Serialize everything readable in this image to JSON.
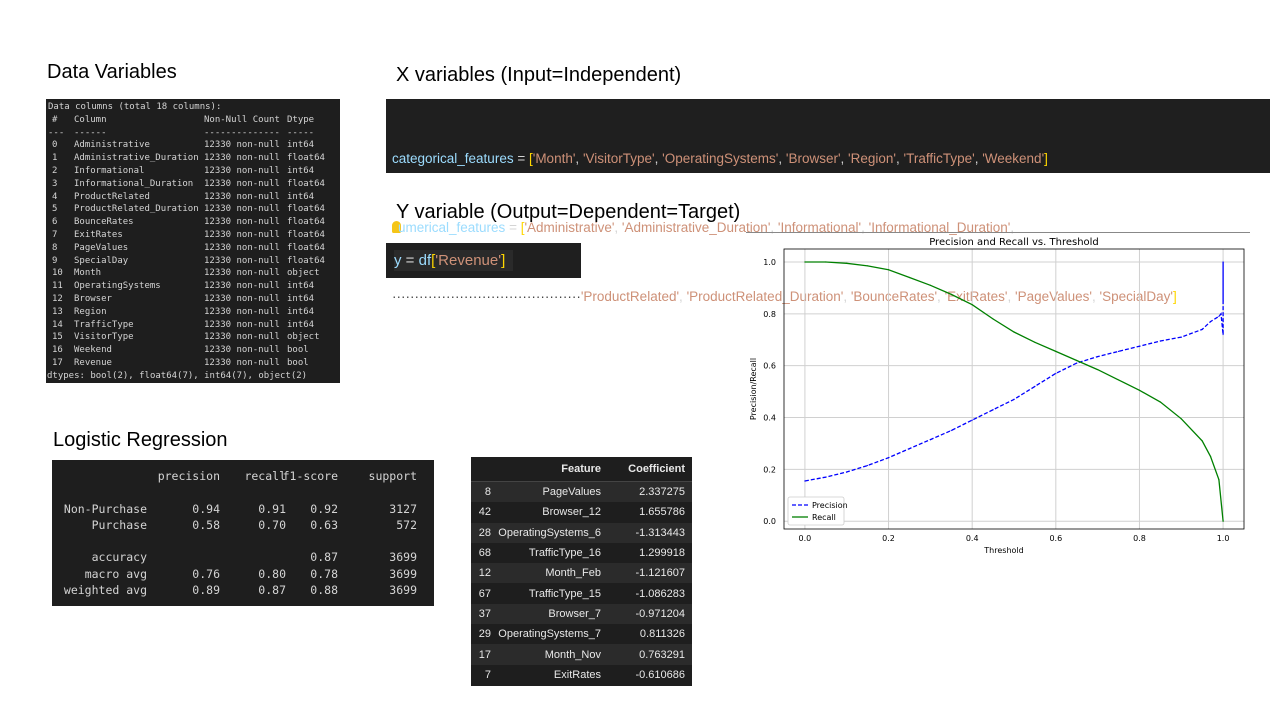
{
  "headings": {
    "data_variables": "Data Variables",
    "x_variables": "X variables (Input=Independent)",
    "y_variable": "Y variable (Output=Dependent=Target)",
    "logistic_regression": "Logistic Regression"
  },
  "data_info": {
    "header_line": "Data columns (total 18 columns):",
    "col_headers": [
      "#",
      "Column",
      "Non-Null Count",
      "Dtype"
    ],
    "separators": [
      "---",
      "------",
      "--------------",
      "-----"
    ],
    "rows": [
      [
        "0",
        "Administrative",
        "12330 non-null",
        "int64"
      ],
      [
        "1",
        "Administrative_Duration",
        "12330 non-null",
        "float64"
      ],
      [
        "2",
        "Informational",
        "12330 non-null",
        "int64"
      ],
      [
        "3",
        "Informational_Duration",
        "12330 non-null",
        "float64"
      ],
      [
        "4",
        "ProductRelated",
        "12330 non-null",
        "int64"
      ],
      [
        "5",
        "ProductRelated_Duration",
        "12330 non-null",
        "float64"
      ],
      [
        "6",
        "BounceRates",
        "12330 non-null",
        "float64"
      ],
      [
        "7",
        "ExitRates",
        "12330 non-null",
        "float64"
      ],
      [
        "8",
        "PageValues",
        "12330 non-null",
        "float64"
      ],
      [
        "9",
        "SpecialDay",
        "12330 non-null",
        "float64"
      ],
      [
        "10",
        "Month",
        "12330 non-null",
        "object"
      ],
      [
        "11",
        "OperatingSystems",
        "12330 non-null",
        "int64"
      ],
      [
        "12",
        "Browser",
        "12330 non-null",
        "int64"
      ],
      [
        "13",
        "Region",
        "12330 non-null",
        "int64"
      ],
      [
        "14",
        "TrafficType",
        "12330 non-null",
        "int64"
      ],
      [
        "15",
        "VisitorType",
        "12330 non-null",
        "object"
      ],
      [
        "16",
        "Weekend",
        "12330 non-null",
        "bool"
      ],
      [
        "17",
        "Revenue",
        "12330 non-null",
        "bool"
      ]
    ],
    "footer_line": "dtypes: bool(2), float64(7), int64(7), object(2)"
  },
  "x_code": {
    "cat_name": "categorical_features",
    "cat_values": [
      "Month",
      "VisitorType",
      "OperatingSystems",
      "Browser",
      "Region",
      "TrafficType",
      "Weekend"
    ],
    "num_name_visible": "umerical_features",
    "num_values_line1": [
      "Administrative",
      "Administrative_Duration",
      "Informational",
      "Informational_Duration"
    ],
    "num_values_line2": [
      "ProductRelated",
      "ProductRelated_Duration",
      "BounceRates",
      "ExitRates",
      "PageValues",
      "SpecialDay"
    ]
  },
  "y_code": {
    "var": "y",
    "df": "df",
    "key": "Revenue"
  },
  "classification_report": {
    "columns": [
      "precision",
      "recall",
      "f1-score",
      "support"
    ],
    "rows": [
      {
        "label": "Non-Purchase",
        "precision": "0.94",
        "recall": "0.91",
        "f1": "0.92",
        "support": "3127"
      },
      {
        "label": "Purchase",
        "precision": "0.58",
        "recall": "0.70",
        "f1": "0.63",
        "support": "572"
      },
      {
        "label": "accuracy",
        "precision": "",
        "recall": "",
        "f1": "0.87",
        "support": "3699"
      },
      {
        "label": "macro avg",
        "precision": "0.76",
        "recall": "0.80",
        "f1": "0.78",
        "support": "3699"
      },
      {
        "label": "weighted avg",
        "precision": "0.89",
        "recall": "0.87",
        "f1": "0.88",
        "support": "3699"
      }
    ]
  },
  "feature_table": {
    "headers": [
      "",
      "Feature",
      "Coefficient"
    ],
    "rows": [
      [
        "8",
        "PageValues",
        "2.337275"
      ],
      [
        "42",
        "Browser_12",
        "1.655786"
      ],
      [
        "28",
        "OperatingSystems_6",
        "-1.313443"
      ],
      [
        "68",
        "TrafficType_16",
        "1.299918"
      ],
      [
        "12",
        "Month_Feb",
        "-1.121607"
      ],
      [
        "67",
        "TrafficType_15",
        "-1.086283"
      ],
      [
        "37",
        "Browser_7",
        "-0.971204"
      ],
      [
        "29",
        "OperatingSystems_7",
        "0.811326"
      ],
      [
        "17",
        "Month_Nov",
        "0.763291"
      ],
      [
        "7",
        "ExitRates",
        "-0.610686"
      ]
    ]
  },
  "chart_data": {
    "type": "line",
    "title": "Precision and Recall vs. Threshold",
    "xlabel": "Threshold",
    "ylabel": "Precision/Recall",
    "xlim": [
      -0.05,
      1.05
    ],
    "ylim": [
      -0.03,
      1.05
    ],
    "xticks": [
      "0.0",
      "0.2",
      "0.4",
      "0.6",
      "0.8",
      "1.0"
    ],
    "yticks": [
      "0.0",
      "0.2",
      "0.4",
      "0.6",
      "0.8",
      "1.0"
    ],
    "grid": true,
    "legend": "lower-left",
    "series": [
      {
        "name": "Precision",
        "color": "#0000ff",
        "style": "dashed",
        "x": [
          0.0,
          0.05,
          0.1,
          0.15,
          0.2,
          0.25,
          0.3,
          0.35,
          0.4,
          0.45,
          0.5,
          0.55,
          0.6,
          0.65,
          0.7,
          0.75,
          0.8,
          0.85,
          0.9,
          0.95,
          0.97,
          0.99,
          0.995,
          1.0,
          1.0,
          1.0
        ],
        "y": [
          0.155,
          0.17,
          0.19,
          0.215,
          0.245,
          0.28,
          0.315,
          0.35,
          0.39,
          0.43,
          0.47,
          0.52,
          0.57,
          0.61,
          0.635,
          0.655,
          0.675,
          0.695,
          0.71,
          0.74,
          0.77,
          0.79,
          0.8,
          0.72,
          1.0,
          0.85
        ]
      },
      {
        "name": "Recall",
        "color": "#008000",
        "style": "solid",
        "x": [
          0.0,
          0.05,
          0.1,
          0.15,
          0.2,
          0.25,
          0.3,
          0.35,
          0.4,
          0.45,
          0.5,
          0.55,
          0.6,
          0.65,
          0.7,
          0.75,
          0.8,
          0.85,
          0.9,
          0.95,
          0.97,
          0.99,
          1.0
        ],
        "y": [
          1.0,
          1.0,
          0.995,
          0.985,
          0.97,
          0.94,
          0.91,
          0.875,
          0.835,
          0.78,
          0.73,
          0.69,
          0.655,
          0.62,
          0.585,
          0.545,
          0.505,
          0.46,
          0.395,
          0.31,
          0.25,
          0.16,
          0.0
        ]
      }
    ]
  }
}
